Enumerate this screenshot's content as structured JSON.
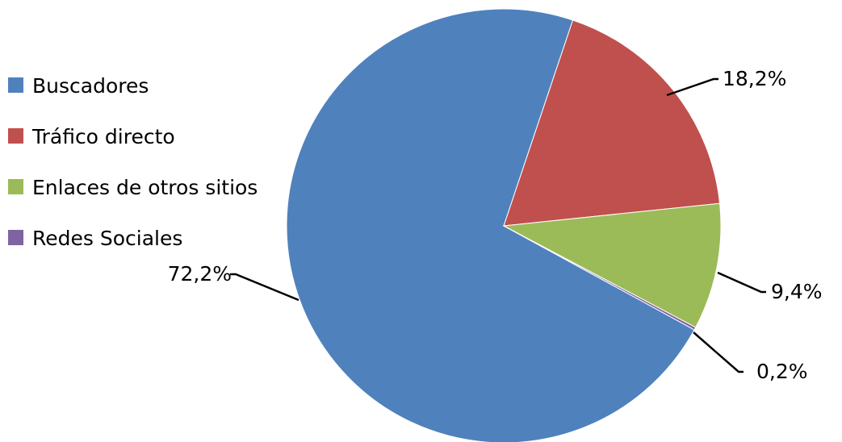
{
  "chart_data": {
    "type": "pie",
    "title": "",
    "legend_position": "left",
    "start_angle_deg": 71.45,
    "direction": "clockwise",
    "slices": [
      {
        "label": "Buscadores",
        "value": 72.2,
        "display": "72,2%",
        "color": "#4F81BD"
      },
      {
        "label": "Tráfico directo",
        "value": 18.2,
        "display": "18,2%",
        "color": "#C0504D"
      },
      {
        "label": "Enlaces de otros sitios",
        "value": 9.4,
        "display": "9,4%",
        "color": "#9BBB59"
      },
      {
        "label": "Redes Sociales",
        "value": 0.2,
        "display": "0,2%",
        "color": "#8064A2"
      }
    ],
    "legend_order": [
      "Buscadores",
      "Tráfico directo",
      "Enlaces de otros sitios",
      "Redes Sociales"
    ]
  }
}
